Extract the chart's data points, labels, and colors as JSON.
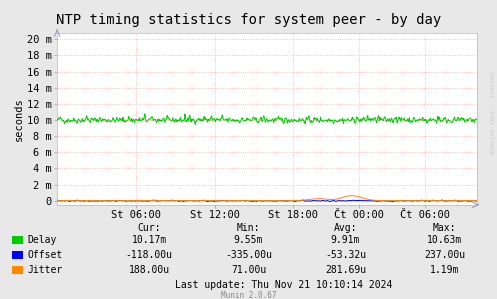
{
  "title": "NTP timing statistics for system peer - by day",
  "ylabel": "seconds",
  "watermark": "RRDTOOL / TOBI OETIKER",
  "munin_version": "Munin 2.0.67",
  "background_color": "#e8e8e8",
  "plot_bg_color": "#ffffff",
  "grid_color": "#ffaaaa",
  "ytick_labels": [
    "0",
    "2 m",
    "4 m",
    "6 m",
    "8 m",
    "10 m",
    "12 m",
    "14 m",
    "16 m",
    "18 m",
    "20 m"
  ],
  "ytick_values": [
    0,
    0.002,
    0.004,
    0.006,
    0.008,
    0.01,
    0.012,
    0.014,
    0.016,
    0.018,
    0.02
  ],
  "ylim": [
    -0.0005,
    0.0208
  ],
  "xtick_labels": [
    "St 06:00",
    "St 12:00",
    "St 18:00",
    "Čt 00:00",
    "Čt 06:00"
  ],
  "delay_color": "#00cc00",
  "offset_color": "#0000ff",
  "jitter_color": "#ff8800",
  "legend_items": [
    {
      "label": "Delay",
      "cur": "10.17m",
      "min": "9.55m",
      "avg": "9.91m",
      "max": "10.63m"
    },
    {
      "label": "Offset",
      "cur": "-118.00u",
      "min": "-335.00u",
      "avg": "-53.32u",
      "max": "237.00u"
    },
    {
      "label": "Jitter",
      "cur": "188.00u",
      "min": "71.00u",
      "avg": "281.69u",
      "max": "1.19m"
    }
  ],
  "last_update": "Last update: Thu Nov 21 10:10:14 2024",
  "title_fontsize": 10,
  "axis_fontsize": 7.5,
  "legend_fontsize": 7
}
